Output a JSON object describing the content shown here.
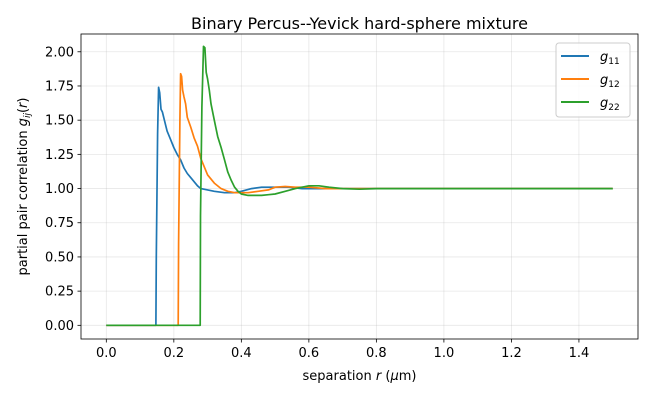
{
  "chart_data": {
    "type": "line",
    "title": "Binary Percus--Yevick hard-sphere mixture",
    "xlabel": "separation r (μm)",
    "ylabel": "partial pair correlation g_ij(r)",
    "xlim": [
      -0.075,
      1.575
    ],
    "ylim": [
      -0.1,
      2.13
    ],
    "xticks": [
      0.0,
      0.2,
      0.4,
      0.6,
      0.8,
      1.0,
      1.2,
      1.4
    ],
    "xtick_labels": [
      "0.0",
      "0.2",
      "0.4",
      "0.6",
      "0.8",
      "1.0",
      "1.2",
      "1.4"
    ],
    "yticks": [
      0.0,
      0.25,
      0.5,
      0.75,
      1.0,
      1.25,
      1.5,
      1.75,
      2.0
    ],
    "ytick_labels": [
      "0.00",
      "0.25",
      "0.50",
      "0.75",
      "1.00",
      "1.25",
      "1.50",
      "1.75",
      "2.00"
    ],
    "grid": true,
    "legend_position": "top-right",
    "series": [
      {
        "name": "g11",
        "color": "#1f77b4",
        "x": [
          0.0,
          0.147,
          0.148,
          0.152,
          0.155,
          0.158,
          0.162,
          0.166,
          0.172,
          0.18,
          0.19,
          0.2,
          0.21,
          0.22,
          0.23,
          0.24,
          0.25,
          0.26,
          0.27,
          0.28,
          0.3,
          0.32,
          0.35,
          0.38,
          0.4,
          0.43,
          0.46,
          0.5,
          0.54,
          0.58,
          0.62,
          0.66,
          0.7,
          0.75,
          0.8,
          0.9,
          1.0,
          1.1,
          1.2,
          1.3,
          1.4,
          1.5
        ],
        "y": [
          0.0,
          0.0,
          0.5,
          1.4,
          1.74,
          1.7,
          1.58,
          1.56,
          1.5,
          1.42,
          1.36,
          1.3,
          1.25,
          1.21,
          1.15,
          1.11,
          1.08,
          1.05,
          1.02,
          1.0,
          0.99,
          0.98,
          0.97,
          0.97,
          0.98,
          1.0,
          1.01,
          1.01,
          1.01,
          1.0,
          1.0,
          1.0,
          1.0,
          1.0,
          1.0,
          1.0,
          1.0,
          1.0,
          1.0,
          1.0,
          1.0,
          1.0
        ]
      },
      {
        "name": "g12",
        "color": "#ff7f0e",
        "x": [
          0.0,
          0.213,
          0.214,
          0.218,
          0.22,
          0.223,
          0.226,
          0.23,
          0.235,
          0.24,
          0.25,
          0.26,
          0.27,
          0.28,
          0.29,
          0.3,
          0.32,
          0.34,
          0.36,
          0.38,
          0.4,
          0.42,
          0.45,
          0.48,
          0.5,
          0.53,
          0.56,
          0.6,
          0.65,
          0.7,
          0.75,
          0.8,
          0.9,
          1.0,
          1.1,
          1.2,
          1.3,
          1.4,
          1.5
        ],
        "y": [
          0.0,
          0.0,
          0.6,
          1.5,
          1.84,
          1.82,
          1.72,
          1.67,
          1.62,
          1.52,
          1.45,
          1.37,
          1.31,
          1.22,
          1.16,
          1.1,
          1.04,
          1.0,
          0.98,
          0.97,
          0.97,
          0.97,
          0.98,
          0.99,
          1.01,
          1.015,
          1.01,
          1.01,
          1.0,
          1.0,
          1.0,
          1.0,
          1.0,
          1.0,
          1.0,
          1.0,
          1.0,
          1.0,
          1.0
        ]
      },
      {
        "name": "g22",
        "color": "#2ca02c",
        "x": [
          0.0,
          0.278,
          0.279,
          0.283,
          0.288,
          0.292,
          0.296,
          0.3,
          0.305,
          0.31,
          0.32,
          0.33,
          0.34,
          0.35,
          0.36,
          0.37,
          0.38,
          0.39,
          0.4,
          0.42,
          0.44,
          0.46,
          0.48,
          0.5,
          0.53,
          0.56,
          0.6,
          0.63,
          0.66,
          0.7,
          0.75,
          0.8,
          0.9,
          1.0,
          1.1,
          1.2,
          1.3,
          1.4,
          1.5
        ],
        "y": [
          0.0,
          0.0,
          0.8,
          1.6,
          2.04,
          2.03,
          1.85,
          1.8,
          1.72,
          1.62,
          1.5,
          1.38,
          1.3,
          1.21,
          1.12,
          1.06,
          1.01,
          0.98,
          0.96,
          0.95,
          0.95,
          0.95,
          0.955,
          0.96,
          0.98,
          1.0,
          1.02,
          1.02,
          1.01,
          1.0,
          0.995,
          1.0,
          1.0,
          1.0,
          1.0,
          1.0,
          1.0,
          1.0,
          1.0
        ]
      }
    ]
  },
  "text": {
    "title": "Binary Percus--Yevick hard-sphere mixture",
    "xlabel_pre": "separation ",
    "xlabel_var": "r",
    "xlabel_post": " (",
    "xlabel_unit": "μ",
    "xlabel_end": "m)",
    "ylabel_pre": "partial pair correlation ",
    "ylabel_var": "g",
    "ylabel_sub": "ij",
    "ylabel_open": "(",
    "ylabel_arg": "r",
    "ylabel_close": ")",
    "legend": [
      {
        "main": "g",
        "sub": "11"
      },
      {
        "main": "g",
        "sub": "12"
      },
      {
        "main": "g",
        "sub": "22"
      }
    ]
  }
}
